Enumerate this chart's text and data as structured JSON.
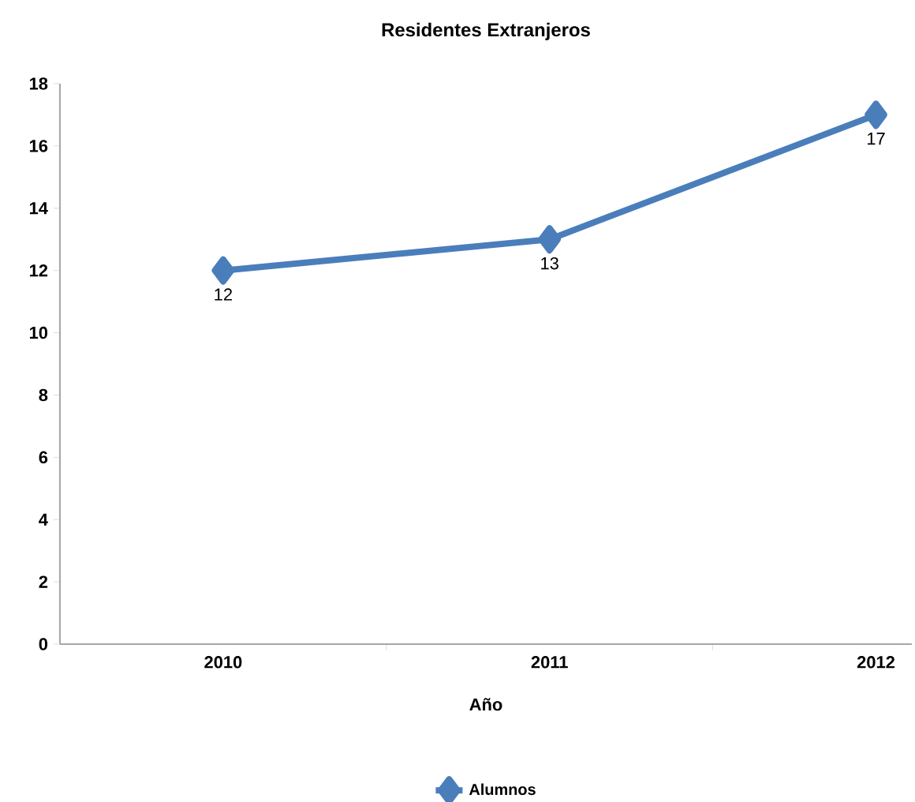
{
  "chart_data": {
    "type": "line",
    "title": "Residentes Extranjeros",
    "xlabel": "Año",
    "categories": [
      "2010",
      "2011",
      "2012"
    ],
    "series": [
      {
        "name": "Alumnos",
        "color": "#4a7ebb",
        "values": [
          12,
          13,
          17
        ]
      }
    ],
    "ylim": [
      0,
      18
    ],
    "yticks": [
      0,
      2,
      4,
      6,
      8,
      10,
      12,
      14,
      16,
      18
    ],
    "data_labels": true,
    "legend": "bottom",
    "marker": "diamond",
    "grid": false
  }
}
